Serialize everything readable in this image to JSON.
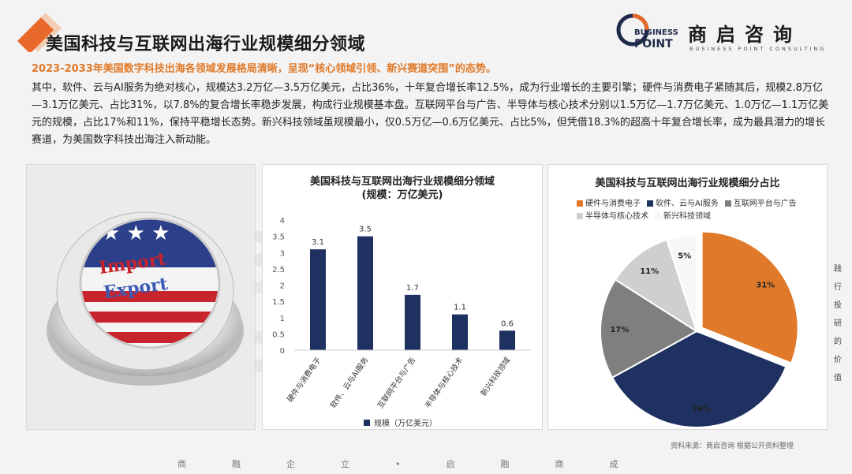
{
  "header": {
    "title": "美国科技与互联网出海行业规模细分领域",
    "subtitle": "2023-2033年美国数字科技出海各领域发展格局清晰，呈现“核心领域引领、新兴赛道突围”的态势。",
    "body": "其中，软件、云与AI服务为绝对核心，规模达3.2万亿—3.5万亿美元，占比36%，十年复合增长率12.5%，成为行业增长的主要引擎；硬件与消费电子紧随其后，规模2.8万亿—3.1万亿美元、占比31%，以7.8%的复合增长率稳步发展，构成行业规模基本盘。互联网平台与广告、半导体与核心技术分别以1.5万亿—1.7万亿美元、1.0万亿—1.1万亿美元的规模，占比17%和11%，保持平稳增长态势。新兴科技领域虽规模最小，仅0.5万亿—0.6万亿美元、占比5%，但凭借18.3%的超高十年复合增长率，成为最具潜力的增长赛道，为美国数字科技出海注入新动能。"
  },
  "logo": {
    "business": "BUSINESS",
    "point": "POINT",
    "cn": "商启咨询",
    "en": "BUSINESS POINT CONSULTING"
  },
  "image_panel": {
    "button_line1": "Import",
    "button_line2": "Export"
  },
  "watermark": "BUSINESS POINT",
  "side_text": [
    "践",
    "行",
    "投",
    "研",
    "的",
    "价",
    "值"
  ],
  "source": "资料来源：商启咨询 根据公开资料整理",
  "footer": "商融企立•启融商成",
  "colors": {
    "accent_orange": "#e07a2a",
    "navy": "#1e3160",
    "gray_dark": "#7f7f7f",
    "gray_light": "#cfcfcf",
    "white_slice": "#f7f7f7"
  },
  "chart_data": [
    {
      "type": "bar",
      "title": "美国科技与互联网出海行业规模细分领域",
      "subtitle": "(规模：万亿美元)",
      "categories": [
        "硬件与消费电子",
        "软件、云与AI服务",
        "互联网平台与广告",
        "半导体与核心技术",
        "新兴科技领域"
      ],
      "series": [
        {
          "name": "规模（万亿美元）",
          "values": [
            3.1,
            3.5,
            1.7,
            1.1,
            0.6
          ]
        }
      ],
      "ylim": [
        0,
        4
      ],
      "yticks": [
        "0",
        "0.5",
        "1",
        "1.5",
        "2",
        "2.5",
        "3",
        "3.5",
        "4"
      ],
      "legend": "bottom",
      "grid": false
    },
    {
      "type": "pie",
      "title": "美国科技与互联网出海行业规模细分占比",
      "labels": [
        "硬件与消费电子",
        "软件、云与AI服务",
        "互联网平台与广告",
        "半导体与核心技术",
        "新兴科技领域"
      ],
      "values": [
        31,
        36,
        17,
        11,
        5
      ],
      "value_labels": [
        "31%",
        "36%",
        "17%",
        "11%",
        "5%"
      ],
      "legend": "top"
    }
  ]
}
